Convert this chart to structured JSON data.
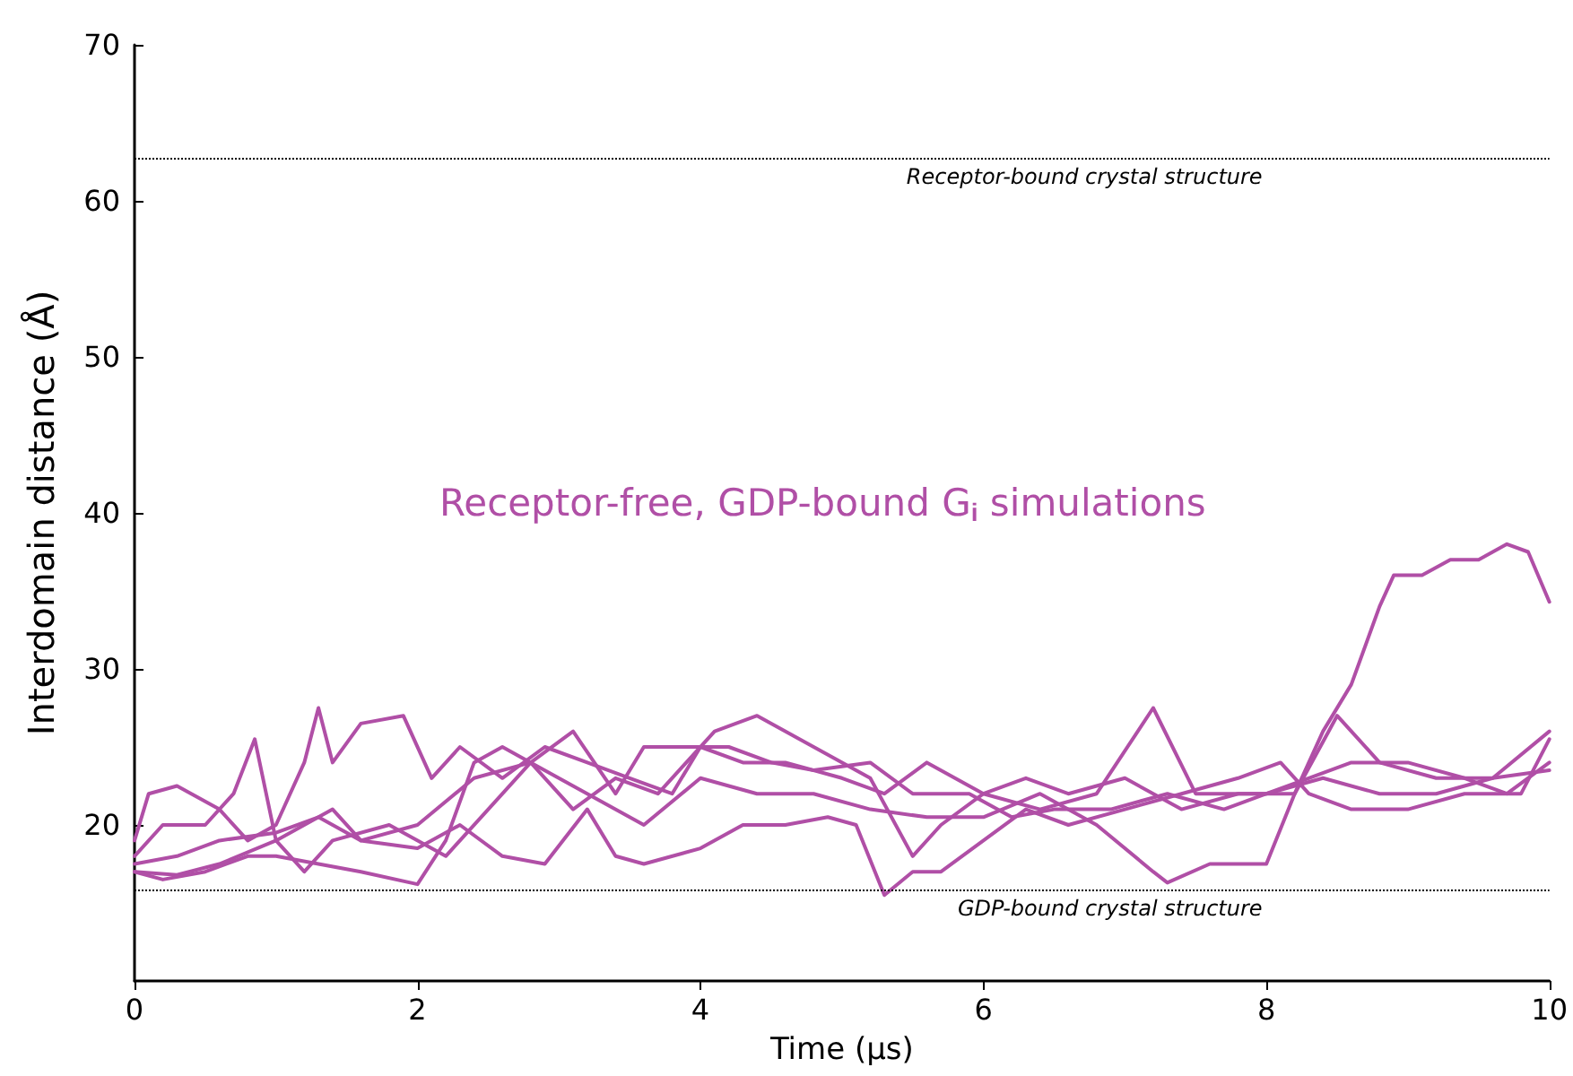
{
  "chart_data": {
    "type": "line",
    "xlabel": "Time (μs)",
    "ylabel": "Interdomain distance (Å)",
    "xlim": [
      0,
      10
    ],
    "xticks": [
      0,
      2,
      4,
      6,
      8,
      10
    ],
    "ylim": [
      10,
      70
    ],
    "yticks": [
      20,
      30,
      40,
      50,
      60,
      70
    ],
    "grid": false,
    "marker": "none",
    "line_style": "solid",
    "annotations": [
      "Receptor-free, GDP-bound G$_{i}$ simulations"
    ],
    "ref_lines": [
      {
        "axis": "y",
        "value": 62.7,
        "label": "Receptor-bound crystal structure",
        "color": "#000000",
        "line_style": "dotted"
      },
      {
        "axis": "y",
        "value": 15.8,
        "label": "GDP-bound crystal structure",
        "color": "#000000",
        "line_style": "dotted"
      }
    ],
    "series": [
      {
        "color": "#b04fa6",
        "x": [
          0,
          0.3,
          0.6,
          1,
          1.4,
          1.6,
          2,
          2.4,
          2.8,
          3.2,
          3.6,
          4,
          4.4,
          4.8,
          5.2,
          5.6,
          6,
          6.4,
          6.8,
          7.2,
          7.3,
          7.6,
          8,
          8.2,
          8.4,
          8.6,
          8.8,
          8.9,
          9.1,
          9.3,
          9.5,
          9.7,
          9.85,
          10
        ],
        "values": [
          17,
          16.8,
          17.5,
          19,
          21,
          19,
          20,
          23,
          24,
          22,
          20,
          23,
          22,
          22,
          21,
          20.5,
          20.5,
          22,
          20,
          17,
          16.3,
          17.5,
          17.5,
          22,
          26,
          29,
          34,
          36,
          36,
          37,
          37,
          38,
          37.5,
          34.3
        ]
      },
      {
        "color": "#b04fa6",
        "x": [
          0,
          0.1,
          0.3,
          0.6,
          0.8,
          1,
          1.2,
          1.3,
          1.4,
          1.6,
          1.9,
          2.1,
          2.3,
          2.6,
          2.9,
          3.2,
          3.5,
          3.8,
          4,
          4.3,
          4.6,
          5,
          5.3,
          5.6,
          6,
          6.4,
          6.8,
          7.2,
          7.5,
          8,
          8.4,
          8.8,
          9.2,
          9.6,
          10
        ],
        "values": [
          19,
          22,
          22.5,
          21,
          19,
          20,
          24,
          27.5,
          24,
          26.5,
          27,
          23,
          25,
          23,
          25,
          24,
          23,
          22,
          25,
          24,
          24,
          23,
          22,
          24,
          22,
          21,
          22,
          27.5,
          22,
          22,
          23,
          22,
          22,
          23,
          26
        ]
      },
      {
        "color": "#b04fa6",
        "x": [
          0,
          0.2,
          0.5,
          0.7,
          0.85,
          1,
          1.2,
          1.4,
          1.8,
          2.2,
          2.5,
          2.8,
          3.1,
          3.4,
          3.7,
          4.1,
          4.4,
          4.8,
          5.2,
          5.5,
          5.7,
          6,
          6.3,
          6.6,
          7,
          7.4,
          7.8,
          8.2,
          8.5,
          8.8,
          9.2,
          9.6,
          10
        ],
        "values": [
          18,
          20,
          20,
          22,
          25.5,
          19,
          17,
          19,
          20,
          18,
          21,
          24,
          21,
          23,
          22,
          26,
          27,
          25,
          23,
          18,
          20,
          22,
          23,
          22,
          23,
          21,
          22,
          22,
          27,
          24,
          23,
          23,
          23.5
        ]
      },
      {
        "color": "#b04fa6",
        "x": [
          0,
          0.2,
          0.5,
          0.8,
          1,
          1.3,
          1.6,
          2,
          2.2,
          2.4,
          2.6,
          2.8,
          3.1,
          3.4,
          3.6,
          3.9,
          4.2,
          4.5,
          4.8,
          5.2,
          5.5,
          5.9,
          6.2,
          6.5,
          6.9,
          7.3,
          7.7,
          8,
          8.3,
          8.6,
          9,
          9.4,
          9.7,
          10
        ],
        "values": [
          17,
          16.5,
          17,
          18,
          18,
          17.5,
          17,
          16.2,
          19,
          24,
          25,
          24,
          26,
          22,
          25,
          25,
          25,
          24,
          23.5,
          24,
          22,
          22,
          20.5,
          21,
          21,
          22,
          21,
          22,
          23,
          24,
          24,
          23,
          22,
          24
        ]
      },
      {
        "color": "#b04fa6",
        "x": [
          0,
          0.3,
          0.6,
          1,
          1.3,
          1.6,
          2,
          2.3,
          2.6,
          2.9,
          3.2,
          3.4,
          3.6,
          4,
          4.3,
          4.6,
          4.9,
          5.1,
          5.3,
          5.5,
          5.7,
          6,
          6.3,
          6.6,
          7,
          7.4,
          7.8,
          8.1,
          8.3,
          8.6,
          9,
          9.4,
          9.8,
          10
        ],
        "values": [
          17.5,
          18,
          19,
          19.5,
          20.5,
          19,
          18.5,
          20,
          18,
          17.5,
          21,
          18,
          17.5,
          18.5,
          20,
          20,
          20.5,
          20,
          15.5,
          17,
          17,
          19,
          21,
          20,
          21,
          22,
          23,
          24,
          22,
          21,
          21,
          22,
          22,
          25.5
        ]
      }
    ]
  }
}
